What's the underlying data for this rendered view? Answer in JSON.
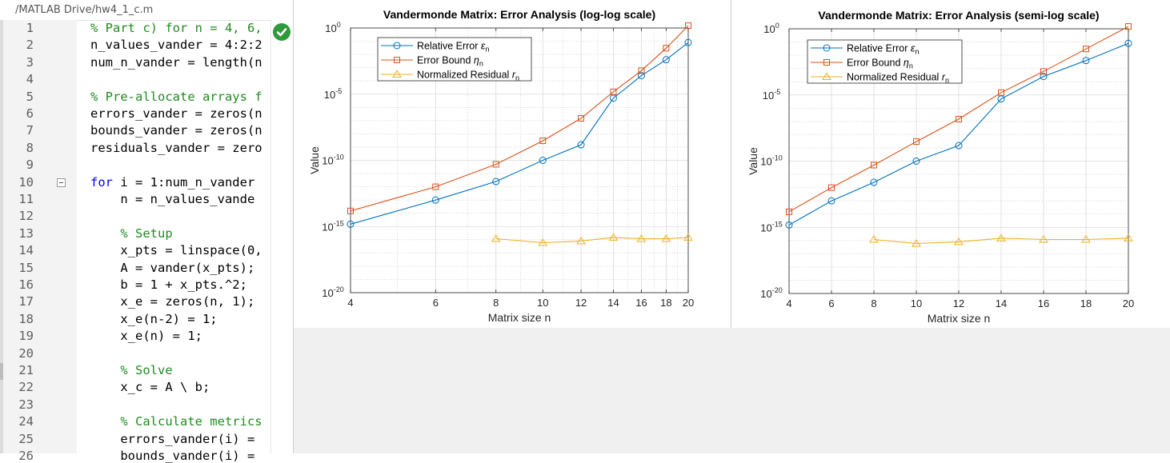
{
  "editor": {
    "path": "/MATLAB Drive/hw4_1_c.m",
    "lines": [
      {
        "n": "1",
        "segments": [
          {
            "t": "% Part c) for n = 4, 6,",
            "c": "#228b22"
          }
        ]
      },
      {
        "n": "2",
        "segments": [
          {
            "t": "n_values_vander = 4:2:2",
            "c": "#000000"
          }
        ]
      },
      {
        "n": "3",
        "segments": [
          {
            "t": "num_n_vander = length(n",
            "c": "#000000"
          }
        ]
      },
      {
        "n": "4",
        "segments": []
      },
      {
        "n": "5",
        "segments": [
          {
            "t": "% Pre-allocate arrays f",
            "c": "#228b22"
          }
        ]
      },
      {
        "n": "6",
        "segments": [
          {
            "t": "errors_vander = zeros(n",
            "c": "#000000"
          }
        ]
      },
      {
        "n": "7",
        "segments": [
          {
            "t": "bounds_vander = zeros(n",
            "c": "#000000"
          }
        ]
      },
      {
        "n": "8",
        "segments": [
          {
            "t": "residuals_vander = zero",
            "c": "#000000"
          }
        ]
      },
      {
        "n": "9",
        "segments": []
      },
      {
        "n": "10",
        "fold": true,
        "segments": [
          {
            "t": "for",
            "c": "#0000ff"
          },
          {
            "t": " i = 1:num_n_vander",
            "c": "#000000"
          }
        ]
      },
      {
        "n": "11",
        "segments": [
          {
            "t": "    n = n_values_vande",
            "c": "#000000"
          }
        ]
      },
      {
        "n": "12",
        "segments": []
      },
      {
        "n": "13",
        "segments": [
          {
            "t": "    % Setup",
            "c": "#228b22"
          }
        ]
      },
      {
        "n": "14",
        "segments": [
          {
            "t": "    x_pts = linspace(0,",
            "c": "#000000"
          }
        ]
      },
      {
        "n": "15",
        "segments": [
          {
            "t": "    A = vander(x_pts);",
            "c": "#000000"
          }
        ]
      },
      {
        "n": "16",
        "segments": [
          {
            "t": "    b = 1 + x_pts.^2;",
            "c": "#000000"
          }
        ]
      },
      {
        "n": "17",
        "segments": [
          {
            "t": "    x_e = zeros(n, 1);",
            "c": "#000000"
          }
        ]
      },
      {
        "n": "18",
        "segments": [
          {
            "t": "    x_e(n-2) = 1;",
            "c": "#000000"
          }
        ]
      },
      {
        "n": "19",
        "segments": [
          {
            "t": "    x_e(n) = 1;",
            "c": "#000000"
          }
        ]
      },
      {
        "n": "20",
        "segments": []
      },
      {
        "n": "21",
        "segments": [
          {
            "t": "    % Solve",
            "c": "#228b22"
          }
        ]
      },
      {
        "n": "22",
        "segments": [
          {
            "t": "    x_c = A \\ b;",
            "c": "#000000"
          }
        ]
      },
      {
        "n": "23",
        "segments": []
      },
      {
        "n": "24",
        "segments": [
          {
            "t": "    % Calculate metrics",
            "c": "#228b22"
          }
        ]
      },
      {
        "n": "25",
        "segments": [
          {
            "t": "    errors_vander(i) =",
            "c": "#000000"
          }
        ]
      },
      {
        "n": "26",
        "segments": [
          {
            "t": "    bounds_vander(i) =",
            "c": "#000000"
          }
        ]
      }
    ]
  },
  "colors": {
    "relative_error": "#0072bd",
    "error_bound": "#d95319",
    "normalized_residual": "#edb120"
  },
  "chart_data": [
    {
      "type": "line",
      "title": "Vandermonde Matrix: Error Analysis (log-log scale)",
      "xlabel": "Matrix size n",
      "ylabel": "Value",
      "xscale": "log",
      "yscale": "log",
      "xlim": [
        4,
        20
      ],
      "ylim": [
        1e-20,
        1
      ],
      "xticks": [
        4,
        6,
        8,
        10,
        12,
        14,
        16,
        18,
        20
      ],
      "xtick_labels": [
        "4",
        "6",
        "8",
        "10",
        "12",
        "14",
        "16",
        "18",
        "20"
      ],
      "ytick_labels": [
        {
          "base": "10",
          "exp": "0",
          "value": 1
        },
        {
          "base": "10",
          "exp": "-5",
          "value": 1e-05
        },
        {
          "base": "10",
          "exp": "-10",
          "value": 1e-10
        },
        {
          "base": "10",
          "exp": "-15",
          "value": 1e-15
        },
        {
          "base": "10",
          "exp": "-20",
          "value": 1e-20
        }
      ],
      "grid": true,
      "legend_position": "top-left",
      "series": [
        {
          "name": "Relative  Error  ",
          "name_sym": "ε",
          "name_sub": "n",
          "marker": "circle",
          "x": [
            4,
            6,
            8,
            10,
            12,
            14,
            16,
            18,
            20
          ],
          "y": [
            1.5e-15,
            1e-13,
            2.5e-12,
            1e-10,
            1.5e-09,
            5e-06,
            0.00025,
            0.004,
            0.08
          ]
        },
        {
          "name": "Error  Bound  ",
          "name_sym": "η",
          "name_sub": "n",
          "marker": "square",
          "x": [
            4,
            6,
            8,
            10,
            12,
            14,
            16,
            18,
            20
          ],
          "y": [
            1.5e-14,
            1e-12,
            5e-11,
            3e-09,
            1.5e-07,
            1.5e-05,
            0.0006,
            0.03,
            1.5
          ]
        },
        {
          "name": "Normalized  Residual  ",
          "name_sym": "r",
          "name_sub": "n",
          "marker": "triangle",
          "x": [
            8,
            10,
            12,
            14,
            16,
            18,
            20
          ],
          "y": [
            1.2e-16,
            6e-17,
            8e-17,
            1.5e-16,
            1.2e-16,
            1.2e-16,
            1.5e-16
          ]
        }
      ]
    },
    {
      "type": "line",
      "title": "Vandermonde Matrix: Error Analysis (semi-log scale)",
      "xlabel": "Matrix size n",
      "ylabel": "Value",
      "xscale": "linear",
      "yscale": "log",
      "xlim": [
        4,
        20
      ],
      "ylim": [
        1e-20,
        1
      ],
      "xticks": [
        4,
        6,
        8,
        10,
        12,
        14,
        16,
        18,
        20
      ],
      "xtick_labels": [
        "4",
        "6",
        "8",
        "10",
        "12",
        "14",
        "16",
        "18",
        "20"
      ],
      "ytick_labels": [
        {
          "base": "10",
          "exp": "0",
          "value": 1
        },
        {
          "base": "10",
          "exp": "-5",
          "value": 1e-05
        },
        {
          "base": "10",
          "exp": "-10",
          "value": 1e-10
        },
        {
          "base": "10",
          "exp": "-15",
          "value": 1e-15
        },
        {
          "base": "10",
          "exp": "-20",
          "value": 1e-20
        }
      ],
      "grid": true,
      "legend_position": "top-left",
      "series": [
        {
          "name": "Relative  Error  ",
          "name_sym": "ε",
          "name_sub": "n",
          "marker": "circle",
          "x": [
            4,
            6,
            8,
            10,
            12,
            14,
            16,
            18,
            20
          ],
          "y": [
            1.5e-15,
            1e-13,
            2.5e-12,
            1e-10,
            1.5e-09,
            5e-06,
            0.00025,
            0.004,
            0.08
          ]
        },
        {
          "name": "Error  Bound  ",
          "name_sym": "η",
          "name_sub": "n",
          "marker": "square",
          "x": [
            4,
            6,
            8,
            10,
            12,
            14,
            16,
            18,
            20
          ],
          "y": [
            1.5e-14,
            1e-12,
            5e-11,
            3e-09,
            1.5e-07,
            1.5e-05,
            0.0006,
            0.03,
            1.5
          ]
        },
        {
          "name": "Normalized  Residual  ",
          "name_sym": "r",
          "name_sub": "n",
          "marker": "triangle",
          "x": [
            8,
            10,
            12,
            14,
            16,
            18,
            20
          ],
          "y": [
            1.2e-16,
            6e-17,
            8e-17,
            1.5e-16,
            1.2e-16,
            1.2e-16,
            1.5e-16
          ]
        }
      ]
    }
  ]
}
